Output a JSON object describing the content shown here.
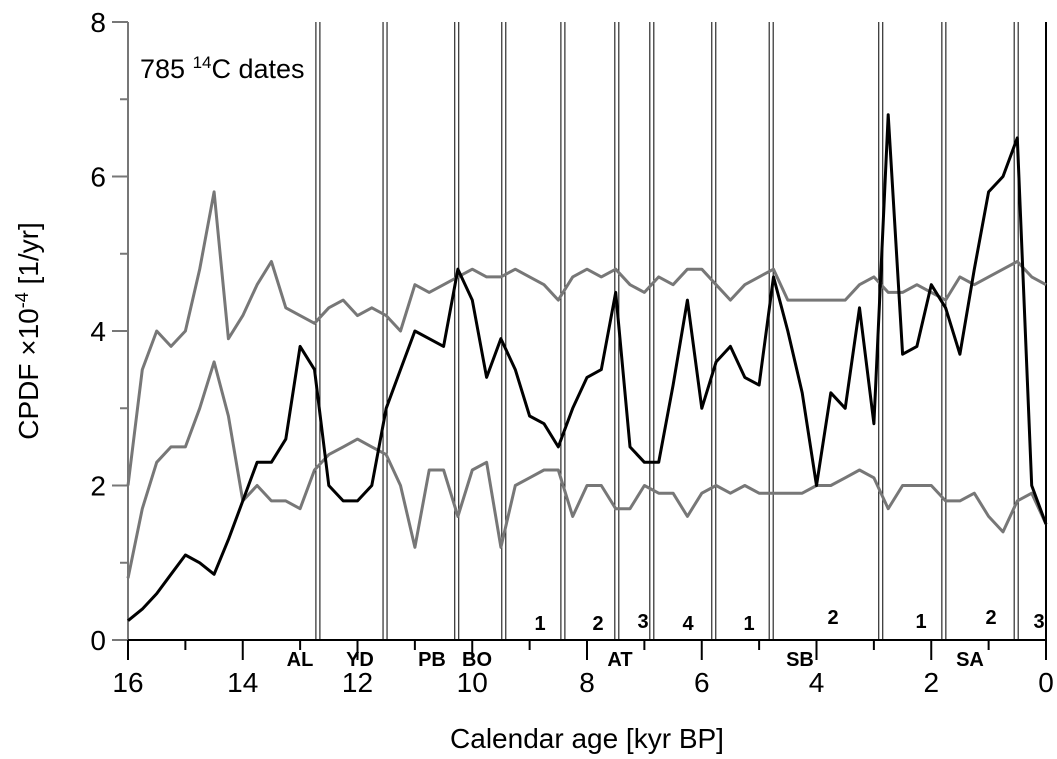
{
  "chart_data": {
    "type": "line",
    "annotation": {
      "number": "785 ",
      "sup": "14",
      "rest": "C dates"
    },
    "y_label": {
      "main": "CPDF  ×10",
      "sup": "-4",
      "unit": "  [1/yr]"
    },
    "x_label": "Calendar age   [kyr BP]",
    "xlim": [
      16,
      0
    ],
    "ylim": [
      0,
      8
    ],
    "xticks": [
      16,
      14,
      12,
      10,
      8,
      6,
      4,
      2,
      0
    ],
    "xminorticks": [
      15,
      13,
      11,
      9,
      7,
      5,
      3,
      1
    ],
    "yticks": [
      0,
      2,
      4,
      6,
      8
    ],
    "yminorticks": [
      1,
      3,
      5,
      7
    ],
    "period_boundaries": [
      12.69,
      11.52,
      10.27,
      9.45,
      8.42,
      7.48,
      6.87,
      5.79,
      4.79,
      2.88,
      1.78,
      0.52
    ],
    "zones": [
      "AL",
      "YD",
      "PB",
      "BO",
      "AT",
      "SB",
      "SA"
    ],
    "subzones": [
      "1",
      "2",
      "3",
      "4",
      "1",
      "2",
      "1",
      "2",
      "3"
    ],
    "x": [
      16,
      15.75,
      15.5,
      15.25,
      15,
      14.75,
      14.5,
      14.25,
      14,
      13.75,
      13.5,
      13.25,
      13,
      12.75,
      12.5,
      12.25,
      12,
      11.75,
      11.5,
      11.25,
      11,
      10.75,
      10.5,
      10.25,
      10,
      9.75,
      9.5,
      9.25,
      9,
      8.75,
      8.5,
      8.25,
      8,
      7.75,
      7.5,
      7.25,
      7,
      6.75,
      6.5,
      6.25,
      6,
      5.75,
      5.5,
      5.25,
      5,
      4.75,
      4.5,
      4.25,
      4,
      3.75,
      3.5,
      3.25,
      3,
      2.75,
      2.5,
      2.25,
      2,
      1.75,
      1.5,
      1.25,
      1,
      0.75,
      0.5,
      0.25,
      0
    ],
    "series": [
      {
        "color": "#777777",
        "values": [
          2.0,
          3.5,
          4.0,
          3.8,
          4.0,
          4.8,
          5.8,
          3.9,
          4.2,
          4.6,
          4.9,
          4.3,
          4.2,
          4.1,
          4.3,
          4.4,
          4.2,
          4.3,
          4.2,
          4.0,
          4.6,
          4.5,
          4.6,
          4.7,
          4.8,
          4.7,
          4.7,
          4.8,
          4.7,
          4.6,
          4.4,
          4.7,
          4.8,
          4.7,
          4.8,
          4.6,
          4.5,
          4.7,
          4.6,
          4.8,
          4.8,
          4.6,
          4.4,
          4.6,
          4.7,
          4.8,
          4.4,
          4.4,
          4.4,
          4.4,
          4.4,
          4.6,
          4.7,
          4.5,
          4.5,
          4.6,
          4.5,
          4.4,
          4.7,
          4.6,
          4.7,
          4.8,
          4.9,
          4.7,
          4.6
        ]
      },
      {
        "color": "#777777",
        "values": [
          0.8,
          1.7,
          2.3,
          2.5,
          2.5,
          3.0,
          3.6,
          2.9,
          1.8,
          2.0,
          1.8,
          1.8,
          1.7,
          2.2,
          2.4,
          2.5,
          2.6,
          2.5,
          2.4,
          2.0,
          1.2,
          2.2,
          2.2,
          1.6,
          2.2,
          2.3,
          1.2,
          2.0,
          2.1,
          2.2,
          2.2,
          1.6,
          2.0,
          2.0,
          1.7,
          1.7,
          2.0,
          1.9,
          1.9,
          1.6,
          1.9,
          2.0,
          1.9,
          2.0,
          1.9,
          1.9,
          1.9,
          1.9,
          2.0,
          2.0,
          2.1,
          2.2,
          2.1,
          1.7,
          2.0,
          2.0,
          2.0,
          1.8,
          1.8,
          1.9,
          1.6,
          1.4,
          1.8,
          1.9,
          1.5
        ]
      },
      {
        "color": "#000000",
        "values": [
          0.25,
          0.4,
          0.6,
          0.85,
          1.1,
          1.0,
          0.85,
          1.3,
          1.8,
          2.3,
          2.3,
          2.6,
          3.8,
          3.5,
          2.0,
          1.8,
          1.8,
          2.0,
          3.0,
          3.5,
          4.0,
          3.9,
          3.8,
          4.8,
          4.4,
          3.4,
          3.9,
          3.5,
          2.9,
          2.8,
          2.5,
          3.0,
          3.4,
          3.5,
          4.5,
          2.5,
          2.3,
          2.3,
          3.3,
          4.4,
          3.0,
          3.6,
          3.8,
          3.4,
          3.3,
          4.7,
          4.0,
          3.2,
          2.0,
          3.2,
          3.0,
          4.3,
          2.8,
          6.8,
          3.7,
          3.8,
          4.6,
          4.3,
          3.7,
          4.8,
          5.8,
          6.0,
          6.5,
          2.0,
          1.5
        ]
      }
    ]
  }
}
